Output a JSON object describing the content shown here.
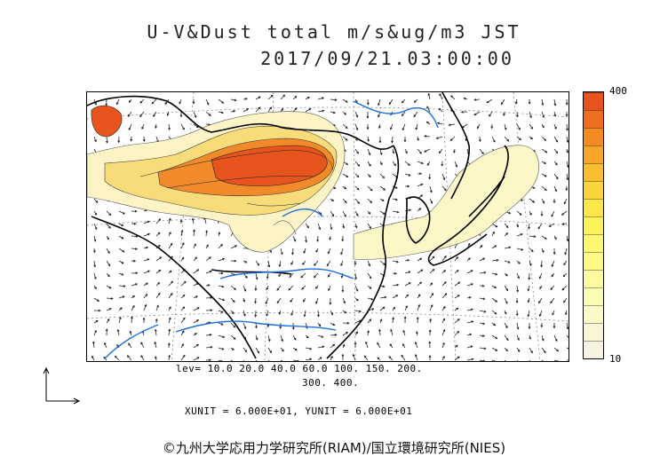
{
  "title": {
    "line1": "U-V&Dust total m/s&ug/m3 JST",
    "line2": "2017/09/21.03:00:00"
  },
  "colorbar": {
    "max_label": "400",
    "min_label": "10",
    "colors": [
      "#e8541e",
      "#ef6d1f",
      "#f48a22",
      "#f7a52a",
      "#f9bd32",
      "#fbd33c",
      "#fde64a",
      "#fef25c",
      "#fef772",
      "#fefa88",
      "#fdfb9e",
      "#fcfbb4",
      "#fbf9c8",
      "#f9f6d8",
      "#f7f3e2"
    ]
  },
  "legend": {
    "levels_line1": "lev= 10.0 20.0 40.0 60.0 100. 150. 200.",
    "levels_line2": "300. 400."
  },
  "units": "XUNIT = 6.000E+01, YUNIT = 6.000E+01",
  "copyright": "©九州大学応用力学研究所(RIAM)/国立環境研究所(NIES)"
}
